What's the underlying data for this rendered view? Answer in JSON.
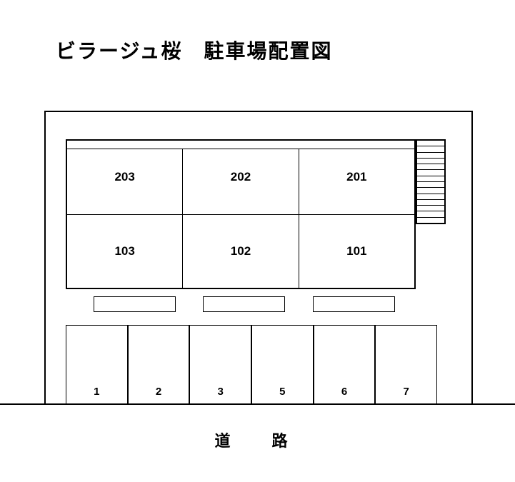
{
  "title": "ビラージュ桜　駐車場配置図",
  "road_label": "道　路",
  "building": {
    "floors": [
      {
        "units": [
          "203",
          "202",
          "201"
        ]
      },
      {
        "units": [
          "103",
          "102",
          "101"
        ]
      }
    ]
  },
  "stairs": {
    "step_count": 14
  },
  "balconies": {
    "count": 3
  },
  "parking": {
    "spaces": [
      "1",
      "2",
      "3",
      "5",
      "6",
      "7"
    ]
  },
  "colors": {
    "background": "#ffffff",
    "line": "#000000",
    "text": "#000000"
  },
  "layout": {
    "title_fontsize": 28,
    "unit_fontsize": 17,
    "parking_fontsize": 15,
    "road_fontsize": 22
  }
}
